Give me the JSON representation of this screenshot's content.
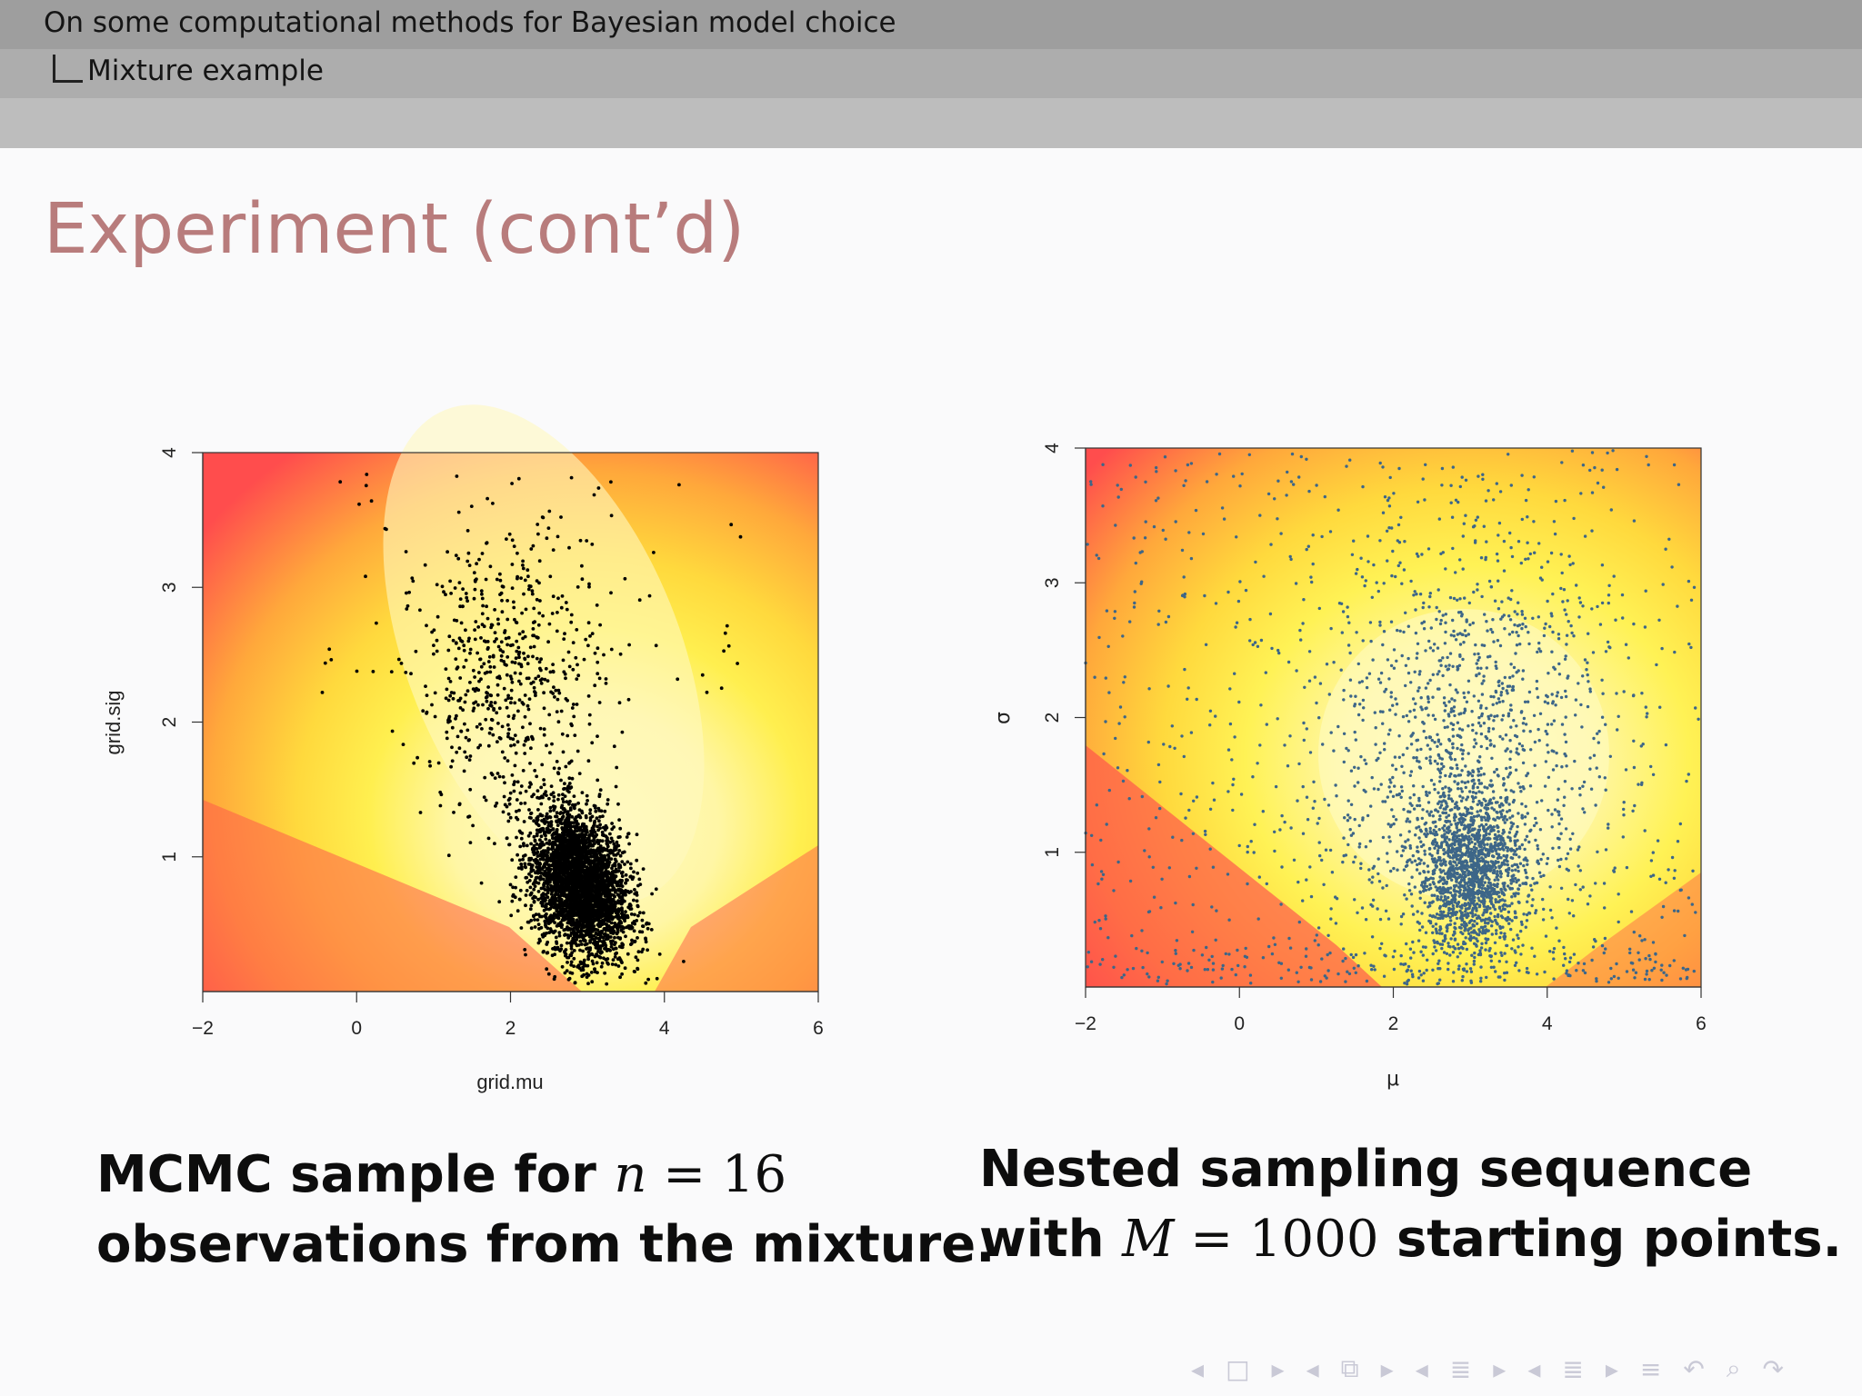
{
  "header": {
    "section_title": "On some computational methods for Bayesian model choice",
    "subsection_title": "Mixture example"
  },
  "slide": {
    "title": "Experiment (cont’d)"
  },
  "captions": {
    "left": {
      "line1_prefix": "MCMC sample for ",
      "line1_var": "n",
      "line1_eq": " = 16",
      "line2": "observations from the mixture."
    },
    "right": {
      "line1": "Nested sampling sequence",
      "line2_prefix": "with ",
      "line2_var": "M",
      "line2_eq": " = 1000",
      "line2_suffix": " starting points."
    }
  },
  "colors": {
    "background": "#fafafb",
    "title": "#b87c7c",
    "header_dark": "#9e9e9e",
    "header_mid": "#adadad",
    "header_light": "#bdbdbd",
    "mcmc_points": "#000000",
    "nested_points": "#3d6688",
    "heat_low": "#ff4d4d",
    "heat_mid": "#ffd93d",
    "heat_high": "#fffcc8"
  },
  "chart_data": [
    {
      "type": "scatter",
      "title": "",
      "xlabel": "grid.mu",
      "ylabel": "grid.sig",
      "xlim": [
        -2,
        6
      ],
      "ylim": [
        0,
        4
      ],
      "x_ticks": [
        "-2",
        "0",
        "2",
        "4",
        "6"
      ],
      "y_ticks": [
        "1",
        "2",
        "3",
        "4"
      ],
      "background": "heatmap",
      "series": [
        {
          "points_approx": 10000,
          "center": [
            2.9,
            0.8
          ],
          "spread": [
            0.35,
            0.35
          ],
          "sparse_tail_center": [
            2.0,
            2.3
          ],
          "sparse_tail_spread": [
            0.6,
            0.55
          ]
        }
      ]
    },
    {
      "type": "scatter",
      "title": "",
      "xlabel": "μ",
      "ylabel": "σ",
      "xlim": [
        -2,
        6
      ],
      "ylim": [
        0,
        4
      ],
      "x_ticks": [
        "-2",
        "0",
        "2",
        "4",
        "6"
      ],
      "y_ticks": [
        "1",
        "2",
        "3",
        "4"
      ],
      "background": "heatmap",
      "series": [
        {
          "points_approx": 4000,
          "center": [
            3.0,
            0.85
          ],
          "spread": [
            0.35,
            0.3
          ],
          "halo_center": [
            3.0,
            1.8
          ],
          "halo_spread": [
            0.9,
            0.8
          ]
        }
      ]
    }
  ],
  "nav_icons": [
    "nav-prev-icon",
    "frame-icon",
    "nav-next-icon",
    "nav-prev-icon",
    "slides-icon",
    "nav-next-icon",
    "nav-prev-icon",
    "section-icon",
    "nav-next-icon",
    "nav-prev-icon",
    "subsection-icon",
    "nav-next-icon",
    "toc-icon",
    "undo-icon",
    "search-icon",
    "redo-icon"
  ]
}
